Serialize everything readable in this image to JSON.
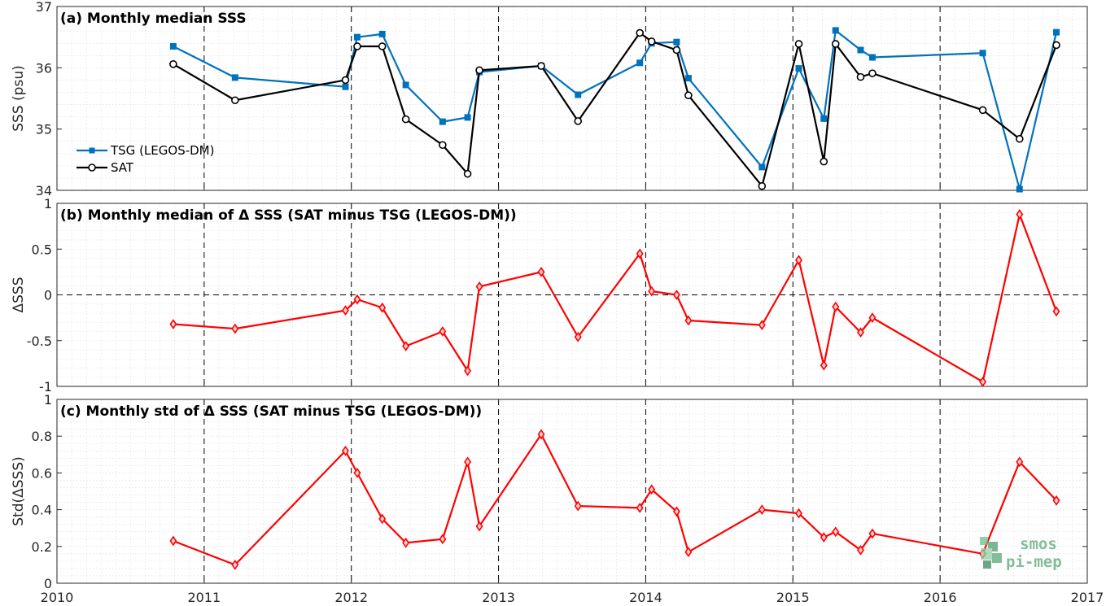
{
  "colors": {
    "tsg": "#0072BD",
    "sat": "#000000",
    "delta": "#FF0000",
    "grid_minor": "#d9d9d9",
    "axis": "#262626",
    "logo_green": "#5aa878"
  },
  "logo": {
    "line1": "smos",
    "line2": "pi-mep"
  },
  "chart_data": [
    {
      "type": "line",
      "title": "(a) Monthly median SSS",
      "ylabel": "SSS (psu)",
      "xlim": [
        2010,
        2017
      ],
      "ylim": [
        34,
        37
      ],
      "x_ticks": [
        "2010",
        "2011",
        "2012",
        "2013",
        "2014",
        "2015",
        "2016",
        "2017"
      ],
      "y_ticks": [
        "34",
        "35",
        "36",
        "37"
      ],
      "show_x_tick_labels": false,
      "grid": true,
      "legend": "left",
      "series": [
        {
          "name": "TSG (LEGOS-DM)",
          "color": "#0072BD",
          "marker": "square",
          "x": [
            2010.79,
            2011.21,
            2011.96,
            2012.04,
            2012.21,
            2012.37,
            2012.62,
            2012.79,
            2012.87,
            2013.29,
            2013.54,
            2013.96,
            2014.04,
            2014.21,
            2014.29,
            2014.79,
            2015.04,
            2015.21,
            2015.29,
            2015.46,
            2015.54,
            2016.29,
            2016.54,
            2016.79
          ],
          "y": [
            36.35,
            35.84,
            35.69,
            36.5,
            36.55,
            35.72,
            35.12,
            35.19,
            35.93,
            36.03,
            35.56,
            36.08,
            36.4,
            36.42,
            35.83,
            34.38,
            35.99,
            35.17,
            36.61,
            36.29,
            36.17,
            36.24,
            34.02,
            36.58
          ]
        },
        {
          "name": "SAT",
          "color": "#000000",
          "marker": "circle",
          "x": [
            2010.79,
            2011.21,
            2011.96,
            2012.04,
            2012.21,
            2012.37,
            2012.62,
            2012.79,
            2012.87,
            2013.29,
            2013.54,
            2013.96,
            2014.04,
            2014.21,
            2014.29,
            2014.79,
            2015.04,
            2015.21,
            2015.29,
            2015.46,
            2015.54,
            2016.29,
            2016.54,
            2016.79
          ],
          "y": [
            36.06,
            35.47,
            35.8,
            36.35,
            36.35,
            35.16,
            34.74,
            34.27,
            35.96,
            36.03,
            35.13,
            36.57,
            36.43,
            36.29,
            35.55,
            34.07,
            36.39,
            34.47,
            36.39,
            35.85,
            35.91,
            35.31,
            34.84,
            36.37
          ]
        }
      ]
    },
    {
      "type": "line",
      "title": "(b) Monthly median of Δ SSS (SAT minus TSG (LEGOS-DM))",
      "ylabel": "ΔSSS",
      "xlim": [
        2010,
        2017
      ],
      "ylim": [
        -1,
        1
      ],
      "x_ticks": [
        "2010",
        "2011",
        "2012",
        "2013",
        "2014",
        "2015",
        "2016",
        "2017"
      ],
      "y_ticks": [
        "-1",
        "-0.5",
        "0",
        "0.5",
        "1"
      ],
      "show_x_tick_labels": false,
      "grid": true,
      "zero_line": true,
      "series": [
        {
          "color": "#FF0000",
          "marker": "diamond",
          "x": [
            2010.79,
            2011.21,
            2011.96,
            2012.04,
            2012.21,
            2012.37,
            2012.62,
            2012.79,
            2012.87,
            2013.29,
            2013.54,
            2013.96,
            2014.04,
            2014.21,
            2014.29,
            2014.79,
            2015.04,
            2015.21,
            2015.29,
            2015.46,
            2015.54,
            2016.29,
            2016.54,
            2016.79
          ],
          "y": [
            -0.32,
            -0.37,
            -0.17,
            -0.05,
            -0.14,
            -0.56,
            -0.4,
            -0.83,
            0.09,
            0.25,
            -0.46,
            0.45,
            0.04,
            0.0,
            -0.28,
            -0.33,
            0.38,
            -0.77,
            -0.13,
            -0.41,
            -0.25,
            -0.95,
            0.88,
            -0.18
          ]
        }
      ]
    },
    {
      "type": "line",
      "title": "(c) Monthly std of Δ SSS (SAT minus TSG (LEGOS-DM))",
      "ylabel": "Std(ΔSSS)",
      "xlim": [
        2010,
        2017
      ],
      "ylim": [
        0,
        1
      ],
      "x_ticks": [
        "2010",
        "2011",
        "2012",
        "2013",
        "2014",
        "2015",
        "2016",
        "2017"
      ],
      "y_ticks": [
        "0",
        "0.2",
        "0.4",
        "0.6",
        "0.8",
        "1"
      ],
      "show_x_tick_labels": true,
      "grid": true,
      "series": [
        {
          "color": "#FF0000",
          "marker": "diamond",
          "x": [
            2010.79,
            2011.21,
            2011.96,
            2012.04,
            2012.21,
            2012.37,
            2012.62,
            2012.79,
            2012.87,
            2013.29,
            2013.54,
            2013.96,
            2014.04,
            2014.21,
            2014.29,
            2014.79,
            2015.04,
            2015.21,
            2015.29,
            2015.46,
            2015.54,
            2016.29,
            2016.54,
            2016.79
          ],
          "y": [
            0.23,
            0.1,
            0.72,
            0.6,
            0.35,
            0.22,
            0.24,
            0.66,
            0.31,
            0.81,
            0.42,
            0.41,
            0.51,
            0.39,
            0.17,
            0.4,
            0.38,
            0.25,
            0.28,
            0.18,
            0.27,
            0.16,
            0.66,
            0.45
          ]
        }
      ]
    }
  ]
}
